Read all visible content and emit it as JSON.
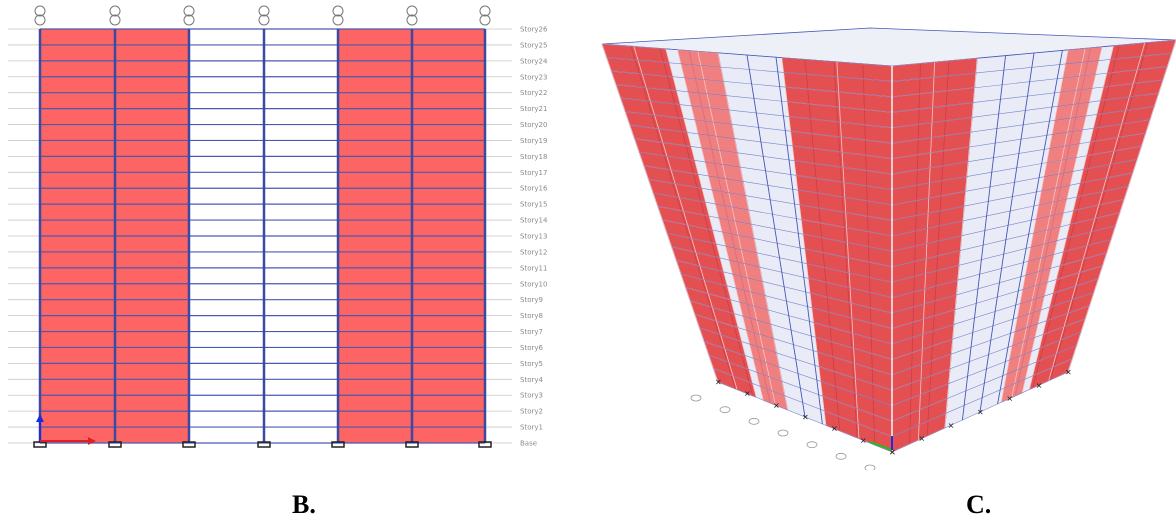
{
  "captions": {
    "left": "B.",
    "right": "C."
  },
  "elevation": {
    "story_labels": [
      "Base",
      "Story1",
      "Story2",
      "Story3",
      "Story4",
      "Story5",
      "Story6",
      "Story7",
      "Story8",
      "Story9",
      "Story10",
      "Story11",
      "Story12",
      "Story13",
      "Story14",
      "Story15",
      "Story16",
      "Story17",
      "Story18",
      "Story19",
      "Story20",
      "Story21",
      "Story22",
      "Story23",
      "Story24",
      "Story25",
      "Story26"
    ],
    "bay_fill": [
      "red",
      "red",
      "white",
      "white",
      "red",
      "red"
    ],
    "colors": {
      "wall_red": "#fd6464",
      "column_blue": "#3b4aa0",
      "beam_blue": "#4a5ab0",
      "support": "#222222"
    }
  },
  "isometric": {
    "colors": {
      "wall_red": "#e23a3a",
      "wall_red_light": "#f07070",
      "frame_blue": "#4656b8",
      "glass": "#dfe4f3"
    },
    "floors": 25
  }
}
